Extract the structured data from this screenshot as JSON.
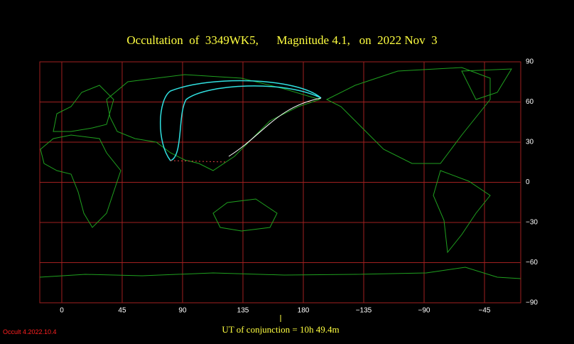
{
  "title": "Occultation  of  3349WK5,      Magnitude 4.1,   on  2022 Nov  3",
  "map": {
    "xlim": [
      -16.4,
      342
    ],
    "ylim": [
      -90,
      90
    ],
    "xticks": [
      0,
      45,
      90,
      135,
      180,
      {
        "value": -135,
        "label": "−135"
      },
      {
        "value": -90,
        "label": "−90"
      },
      {
        "value": -45,
        "label": "−45"
      }
    ],
    "yticks": [
      90,
      60,
      30,
      0,
      {
        "value": -30,
        "label": "−30"
      },
      {
        "value": -60,
        "label": "−60"
      },
      {
        "value": -90,
        "label": "−90"
      }
    ]
  },
  "footer": {
    "conjunction": "UT of conjunction = 10h 49.4m",
    "version": "Occult 4.2022.10.4"
  }
}
